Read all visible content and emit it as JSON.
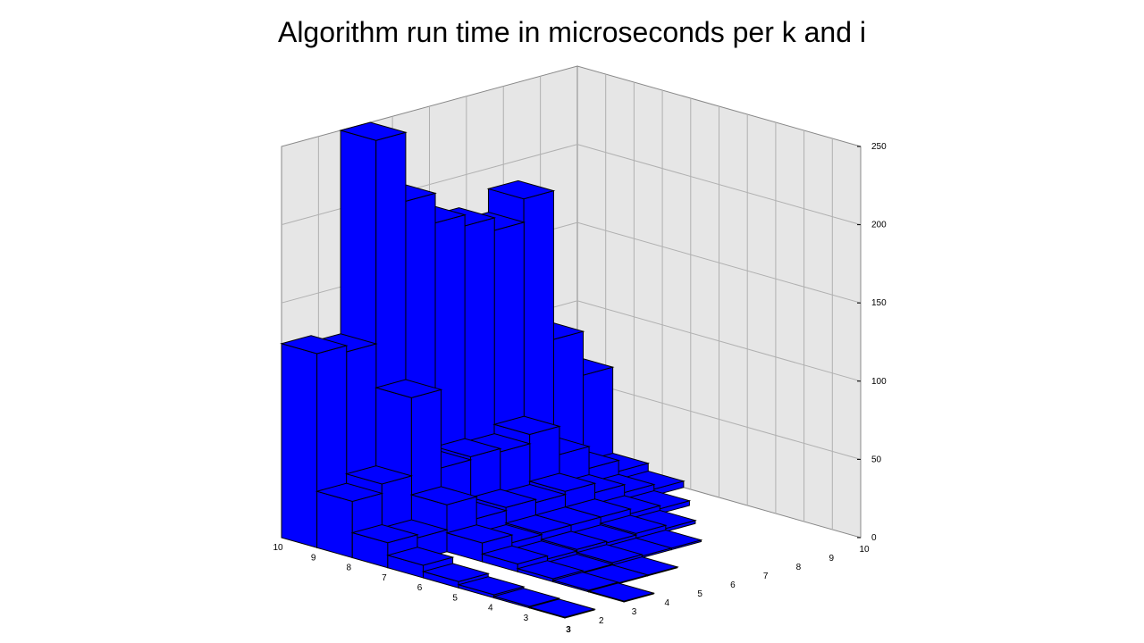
{
  "chart_data": {
    "type": "bar3d",
    "title": "Algorithm run time in microseconds per k and i",
    "xlabel": "",
    "ylabel": "",
    "zlabel": "",
    "k_values": [
      10,
      9,
      8,
      7,
      6,
      5,
      4,
      3
    ],
    "i_values": [
      3,
      2,
      3,
      4,
      5,
      6,
      7,
      8,
      9,
      10
    ],
    "zlim": [
      0,
      250
    ],
    "z_ticks": [
      0,
      50,
      100,
      150,
      200,
      250
    ],
    "grid": true,
    "bar_color": "#0000ff",
    "pane_color": "#e6e6e6",
    "values": [
      [
        0,
        0,
        0,
        0,
        0,
        0,
        0,
        0,
        0,
        0
      ],
      [
        0,
        0,
        0,
        0,
        0,
        0,
        0,
        0,
        0,
        0
      ],
      [
        0,
        0,
        0,
        0,
        0,
        0,
        0,
        0,
        0,
        0
      ],
      [
        0,
        0,
        0,
        0,
        0,
        0,
        0,
        0,
        0,
        0
      ],
      [
        0,
        0,
        0,
        0,
        0,
        0,
        0,
        0,
        0,
        0
      ],
      [
        0,
        0,
        0,
        0,
        0,
        0,
        0,
        0,
        0,
        0
      ],
      [
        0,
        0,
        0,
        0,
        0,
        0,
        0,
        0,
        0,
        0
      ],
      [
        0,
        0,
        0,
        0,
        0,
        0,
        0,
        0,
        0,
        0
      ]
    ],
    "bars": [
      {
        "k": 10,
        "i": 10,
        "value": 124
      },
      {
        "k": 10,
        "i": 9,
        "value": 120
      },
      {
        "k": 9,
        "i": 10,
        "value": 36
      },
      {
        "k": 9,
        "i": 9,
        "value": 42
      },
      {
        "k": 8,
        "i": 10,
        "value": 16
      },
      {
        "k": 8,
        "i": 9,
        "value": 14
      },
      {
        "k": 7,
        "i": 10,
        "value": 8
      },
      {
        "k": 6,
        "i": 10,
        "value": 4
      },
      {
        "k": 5,
        "i": 10,
        "value": 2
      },
      {
        "k": 4,
        "i": 10,
        "value": 1
      },
      {
        "k": 3,
        "i": 10,
        "value": 0.5
      },
      {
        "k": 10,
        "i": 8,
        "value": 250
      },
      {
        "k": 10,
        "i": 7,
        "value": 206
      },
      {
        "k": 10,
        "i": 6,
        "value": 187
      },
      {
        "k": 10,
        "i": 5,
        "value": 180
      },
      {
        "k": 10,
        "i": 4,
        "value": 172
      },
      {
        "k": 10,
        "i": 3,
        "value": 187
      },
      {
        "k": 10,
        "i": 2,
        "value": 92
      },
      {
        "k": 10,
        "i": 1,
        "value": 64
      },
      {
        "k": 10,
        "i": 0,
        "value": 28
      },
      {
        "k": 10,
        "i": -1,
        "value": 14
      },
      {
        "k": 10,
        "i": -2,
        "value": 7
      },
      {
        "k": 9,
        "i": 8,
        "value": 92
      },
      {
        "k": 9,
        "i": 7,
        "value": 42
      },
      {
        "k": 9,
        "i": 6,
        "value": 44
      },
      {
        "k": 9,
        "i": 5,
        "value": 42
      },
      {
        "k": 9,
        "i": 4,
        "value": 48
      },
      {
        "k": 9,
        "i": 3,
        "value": 30
      },
      {
        "k": 9,
        "i": 2,
        "value": 16
      },
      {
        "k": 9,
        "i": 1,
        "value": 9
      },
      {
        "k": 9,
        "i": 0,
        "value": 5
      },
      {
        "k": 8,
        "i": 8,
        "value": 30
      },
      {
        "k": 8,
        "i": 7,
        "value": 16
      },
      {
        "k": 8,
        "i": 6,
        "value": 18
      },
      {
        "k": 8,
        "i": 5,
        "value": 16
      },
      {
        "k": 8,
        "i": 4,
        "value": 18
      },
      {
        "k": 8,
        "i": 3,
        "value": 12
      },
      {
        "k": 8,
        "i": 2,
        "value": 7
      },
      {
        "k": 8,
        "i": 1,
        "value": 4
      },
      {
        "k": 7,
        "i": 8,
        "value": 12
      },
      {
        "k": 7,
        "i": 7,
        "value": 7
      },
      {
        "k": 7,
        "i": 6,
        "value": 8
      },
      {
        "k": 7,
        "i": 5,
        "value": 8
      },
      {
        "k": 7,
        "i": 4,
        "value": 8
      },
      {
        "k": 7,
        "i": 3,
        "value": 5
      },
      {
        "k": 7,
        "i": 2,
        "value": 3
      },
      {
        "k": 6,
        "i": 8,
        "value": 5
      },
      {
        "k": 6,
        "i": 7,
        "value": 3
      },
      {
        "k": 6,
        "i": 6,
        "value": 4
      },
      {
        "k": 6,
        "i": 5,
        "value": 3
      },
      {
        "k": 6,
        "i": 4,
        "value": 4
      },
      {
        "k": 6,
        "i": 3,
        "value": 2
      },
      {
        "k": 5,
        "i": 8,
        "value": 2
      },
      {
        "k": 5,
        "i": 7,
        "value": 1
      },
      {
        "k": 5,
        "i": 6,
        "value": 2
      },
      {
        "k": 5,
        "i": 5,
        "value": 1
      },
      {
        "k": 5,
        "i": 4,
        "value": 1
      },
      {
        "k": 4,
        "i": 8,
        "value": 1
      },
      {
        "k": 4,
        "i": 7,
        "value": 0.5
      },
      {
        "k": 4,
        "i": 6,
        "value": 0.5
      },
      {
        "k": 3,
        "i": 8,
        "value": 0.5
      }
    ]
  }
}
